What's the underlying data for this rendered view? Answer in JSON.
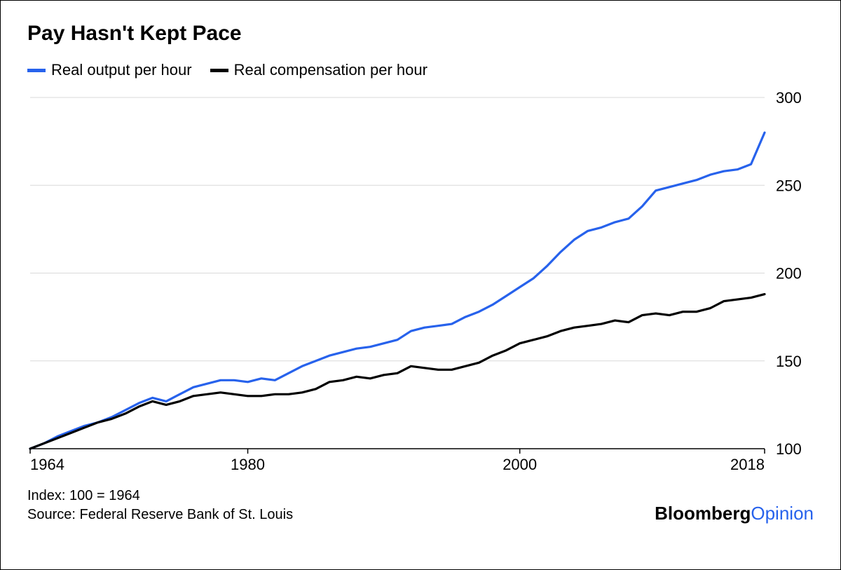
{
  "title": "Pay Hasn't Kept Pace",
  "legend": {
    "series1": {
      "label": "Real output per hour",
      "color": "#2762ec"
    },
    "series2": {
      "label": "Real compensation per hour",
      "color": "#000000"
    }
  },
  "chart": {
    "type": "line",
    "background_color": "#ffffff",
    "grid_color": "#d9d9d9",
    "axis_color": "#000000",
    "line_width": 3.2,
    "xlim": [
      1964,
      2018
    ],
    "ylim": [
      100,
      300
    ],
    "yticks": [
      100,
      150,
      200,
      250,
      300
    ],
    "xticks": [
      1964,
      1980,
      2000,
      2018
    ],
    "title_fontsize": 30,
    "label_fontsize": 22,
    "series": [
      {
        "name": "Real output per hour",
        "color": "#2762ec",
        "x": [
          1964,
          1965,
          1966,
          1967,
          1968,
          1969,
          1970,
          1971,
          1972,
          1973,
          1974,
          1975,
          1976,
          1977,
          1978,
          1979,
          1980,
          1981,
          1982,
          1983,
          1984,
          1985,
          1986,
          1987,
          1988,
          1989,
          1990,
          1991,
          1992,
          1993,
          1994,
          1995,
          1996,
          1997,
          1998,
          1999,
          2000,
          2001,
          2002,
          2003,
          2004,
          2005,
          2006,
          2007,
          2008,
          2009,
          2010,
          2011,
          2012,
          2013,
          2014,
          2015,
          2016,
          2017,
          2018
        ],
        "y": [
          100,
          103,
          107,
          110,
          113,
          115,
          118,
          122,
          126,
          129,
          127,
          131,
          135,
          137,
          139,
          139,
          138,
          140,
          139,
          143,
          147,
          150,
          153,
          155,
          157,
          158,
          160,
          162,
          167,
          169,
          170,
          171,
          175,
          178,
          182,
          187,
          192,
          197,
          204,
          212,
          219,
          224,
          226,
          229,
          231,
          238,
          247,
          249,
          251,
          253,
          256,
          258,
          259,
          262,
          280
        ]
      },
      {
        "name": "Real compensation per hour",
        "color": "#000000",
        "x": [
          1964,
          1965,
          1966,
          1967,
          1968,
          1969,
          1970,
          1971,
          1972,
          1973,
          1974,
          1975,
          1976,
          1977,
          1978,
          1979,
          1980,
          1981,
          1982,
          1983,
          1984,
          1985,
          1986,
          1987,
          1988,
          1989,
          1990,
          1991,
          1992,
          1993,
          1994,
          1995,
          1996,
          1997,
          1998,
          1999,
          2000,
          2001,
          2002,
          2003,
          2004,
          2005,
          2006,
          2007,
          2008,
          2009,
          2010,
          2011,
          2012,
          2013,
          2014,
          2015,
          2016,
          2017,
          2018
        ],
        "y": [
          100,
          103,
          106,
          109,
          112,
          115,
          117,
          120,
          124,
          127,
          125,
          127,
          130,
          131,
          132,
          131,
          130,
          130,
          131,
          131,
          132,
          134,
          138,
          139,
          141,
          140,
          142,
          143,
          147,
          146,
          145,
          145,
          147,
          149,
          153,
          156,
          160,
          162,
          164,
          167,
          169,
          170,
          171,
          173,
          172,
          176,
          177,
          176,
          178,
          178,
          180,
          184,
          185,
          186,
          188
        ]
      }
    ]
  },
  "footnote_index": "Index: 100 = 1964",
  "footnote_source": "Source: Federal Reserve Bank of St. Louis",
  "brand": {
    "part1": "Bloomberg",
    "part2": "Opinion",
    "color2": "#2762ec"
  }
}
